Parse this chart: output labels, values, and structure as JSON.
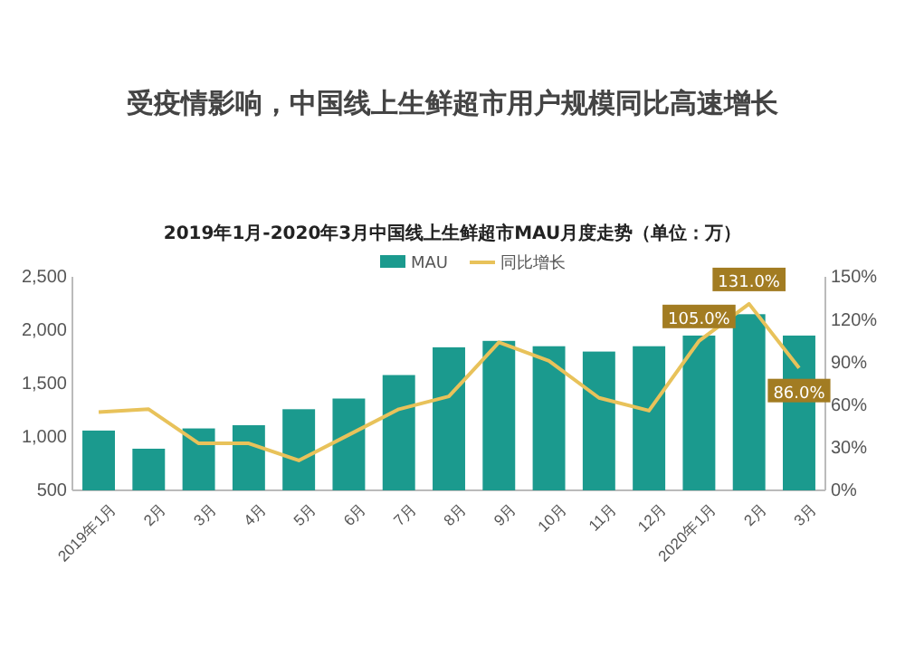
{
  "chart_data": {
    "type": "bar",
    "title": "受疫情影响，中国线上生鲜超市用户规模同比高速增长",
    "subtitle": "2019年1月-2020年3月中国线上生鲜超市MAU月度走势（单位：万）",
    "categories": [
      "2019年1月",
      "2月",
      "3月",
      "4月",
      "5月",
      "6月",
      "7月",
      "8月",
      "9月",
      "10月",
      "11月",
      "12月",
      "2020年1月",
      "2月",
      "3月"
    ],
    "series": [
      {
        "name": "MAU",
        "color": "#1b9a8e",
        "values": [
          1060,
          890,
          1080,
          1110,
          1260,
          1360,
          1580,
          1840,
          1900,
          1850,
          1800,
          1850,
          1950,
          2150,
          1950
        ]
      },
      {
        "name": "同比增长",
        "type": "line",
        "axis": "y2",
        "color": "#e8c25a",
        "values": [
          55,
          57,
          33,
          33,
          21,
          39,
          57,
          66,
          104,
          91,
          65,
          56,
          105,
          131,
          86
        ],
        "value_labels": [
          null,
          null,
          null,
          null,
          null,
          null,
          null,
          null,
          null,
          null,
          null,
          null,
          "105.0%",
          "131.0%",
          "86.0%"
        ]
      }
    ],
    "ylim": [
      500,
      2500
    ],
    "yticks": [
      {
        "value": 500,
        "label": "500"
      },
      {
        "value": 1000,
        "label": "1,000"
      },
      {
        "value": 1500,
        "label": "1,500"
      },
      {
        "value": 2000,
        "label": "2,000"
      },
      {
        "value": 2500,
        "label": "2,500"
      }
    ],
    "y2lim": [
      0,
      150
    ],
    "y2ticks": [
      {
        "value": 0,
        "label": "0%"
      },
      {
        "value": 30,
        "label": "30%"
      },
      {
        "value": 60,
        "label": "60%"
      },
      {
        "value": 90,
        "label": "90%"
      },
      {
        "value": 120,
        "label": "120%"
      },
      {
        "value": 150,
        "label": "150%"
      }
    ],
    "legend": "top",
    "grid": false
  }
}
